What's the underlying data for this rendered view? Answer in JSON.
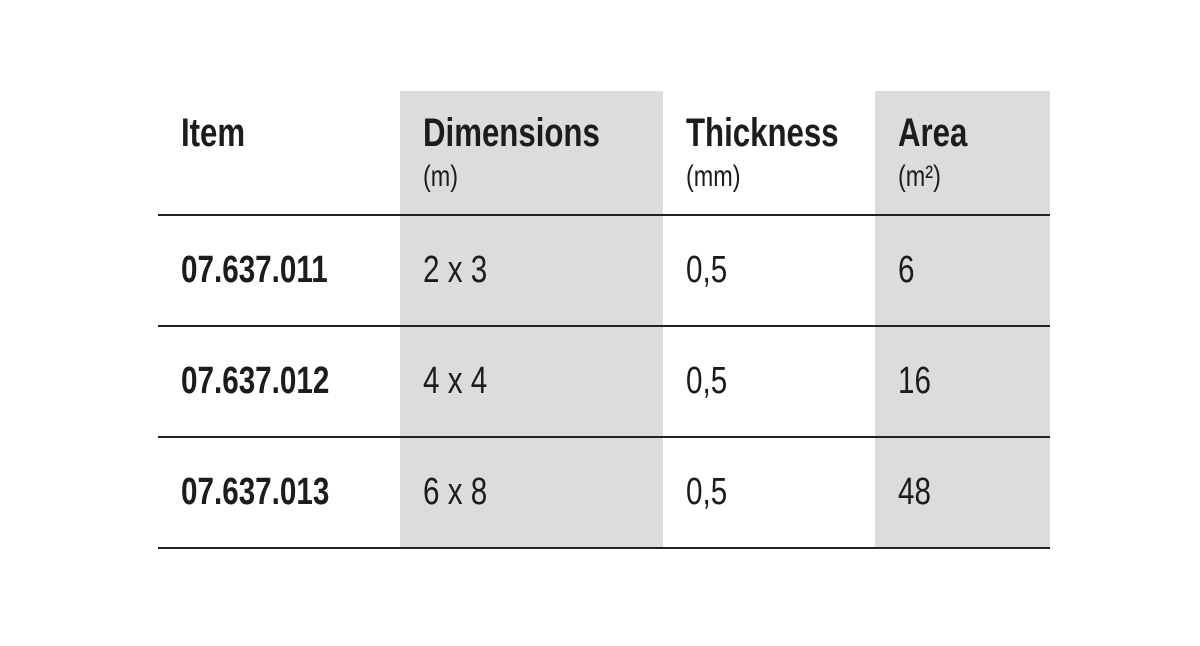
{
  "table": {
    "header": [
      {
        "title": "Item"
      },
      {
        "title": "Dimensions",
        "unit": "(m)"
      },
      {
        "title": "Thickness",
        "unit": "(mm)"
      },
      {
        "title": "Area",
        "unit": "(m²)"
      }
    ],
    "rows": [
      [
        "07.637.011",
        "2 x 3",
        "0,5",
        "6"
      ],
      [
        "07.637.012",
        "4 x 4",
        "0,5",
        "16"
      ],
      [
        "07.637.013",
        "6 x 8",
        "0,5",
        "48"
      ]
    ]
  }
}
